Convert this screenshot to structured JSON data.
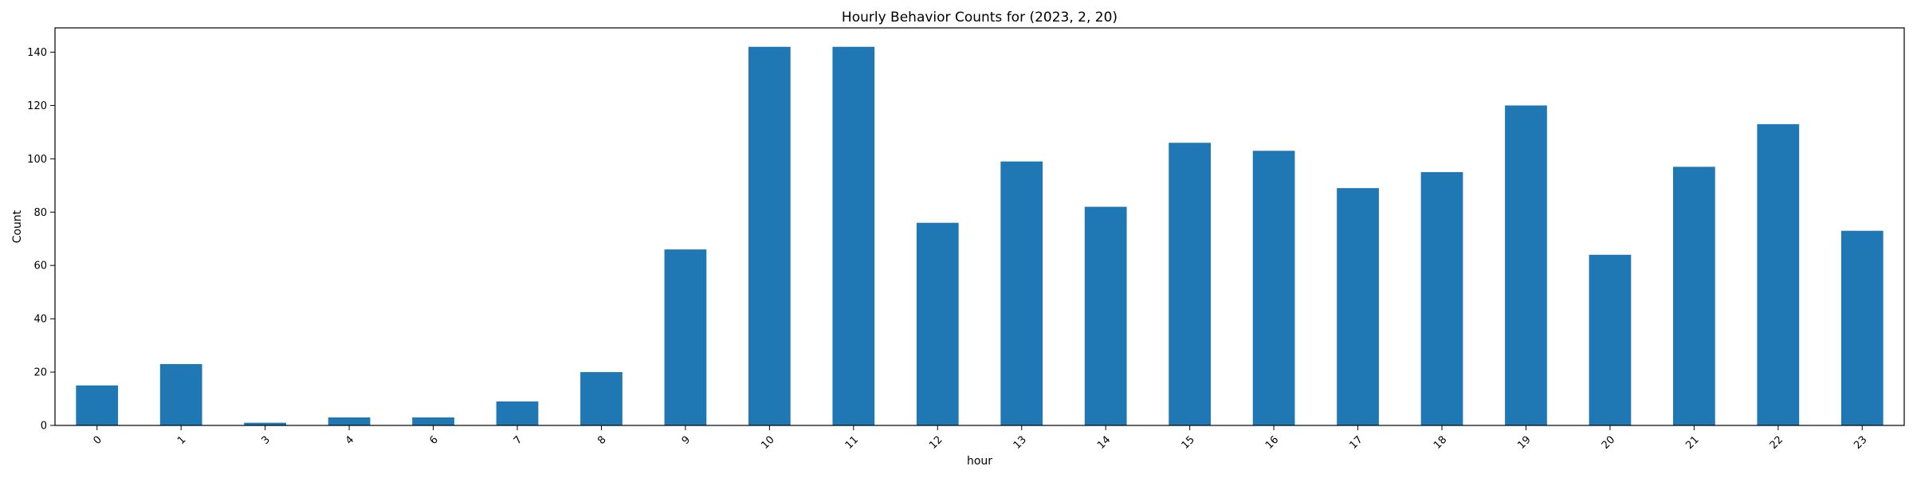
{
  "chart_data": {
    "type": "bar",
    "title": "Hourly Behavior Counts for (2023, 2, 20)",
    "xlabel": "hour",
    "ylabel": "Count",
    "categories": [
      "0",
      "1",
      "3",
      "4",
      "6",
      "7",
      "8",
      "9",
      "10",
      "11",
      "12",
      "13",
      "14",
      "15",
      "16",
      "17",
      "18",
      "19",
      "20",
      "21",
      "22",
      "23"
    ],
    "values": [
      15,
      23,
      1,
      3,
      3,
      9,
      20,
      66,
      142,
      142,
      76,
      99,
      82,
      106,
      103,
      89,
      95,
      120,
      64,
      97,
      113,
      73
    ],
    "ylim": [
      0,
      149.1
    ],
    "yticks": [
      0,
      20,
      40,
      60,
      80,
      100,
      120,
      140
    ],
    "bar_color": "#1f77b4",
    "grid": false,
    "legend": "none"
  }
}
